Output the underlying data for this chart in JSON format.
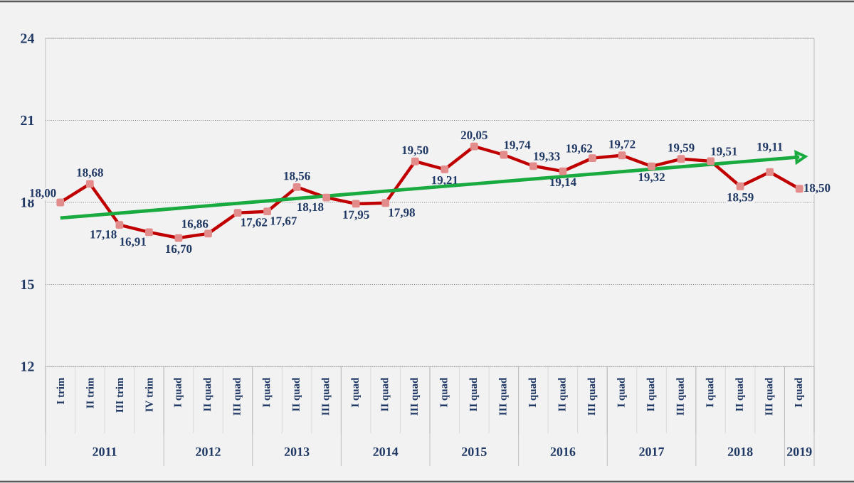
{
  "chart_data": {
    "type": "line",
    "categories": [
      "I trim",
      "II trim",
      "III trim",
      "IV trim",
      "I quad",
      "II quad",
      "III quad",
      "I quad",
      "II quad",
      "III quad",
      "I quad",
      "II quad",
      "III quad",
      "I quad",
      "II quad",
      "III quad",
      "I quad",
      "II quad",
      "III quad",
      "I quad",
      "II quad",
      "III quad",
      "I quad",
      "II quad",
      "III quad",
      "I quad"
    ],
    "series": [
      {
        "color": "#c00000",
        "values": [
          18.0,
          18.68,
          17.18,
          16.91,
          16.7,
          16.86,
          17.62,
          17.67,
          18.56,
          18.18,
          17.95,
          17.98,
          19.5,
          19.21,
          20.05,
          19.74,
          19.33,
          19.14,
          19.62,
          19.72,
          19.32,
          19.59,
          19.51,
          18.59,
          19.11,
          18.5
        ],
        "marker": "square",
        "value_labels": [
          "18,00",
          "18,68",
          "17,18",
          "16,91",
          "16,70",
          "16,86",
          "17,62",
          "17,67",
          "18,56",
          "18,18",
          "17,95",
          "17,98",
          "19,50",
          "19,21",
          "20,05",
          "19,74",
          "19,33",
          "19,14",
          "19,62",
          "19,72",
          "19,32",
          "19,59",
          "19,51",
          "18,59",
          "19,11",
          "18,50"
        ]
      },
      {
        "type": "line",
        "color": "#1aab40",
        "values": [
          17.43,
          null,
          null,
          null,
          null,
          null,
          null,
          null,
          null,
          null,
          null,
          null,
          null,
          null,
          null,
          null,
          null,
          null,
          null,
          null,
          null,
          null,
          null,
          null,
          null,
          19.66
        ]
      }
    ],
    "ylim": [
      12,
      24
    ],
    "yticks": [
      12,
      15,
      18,
      21,
      24
    ],
    "grid": "y",
    "legend": false,
    "line_style": "solid",
    "annotations": [
      "2011",
      "2012",
      "2013",
      "2014",
      "2015",
      "2016",
      "2017",
      "2018",
      "2019"
    ]
  }
}
